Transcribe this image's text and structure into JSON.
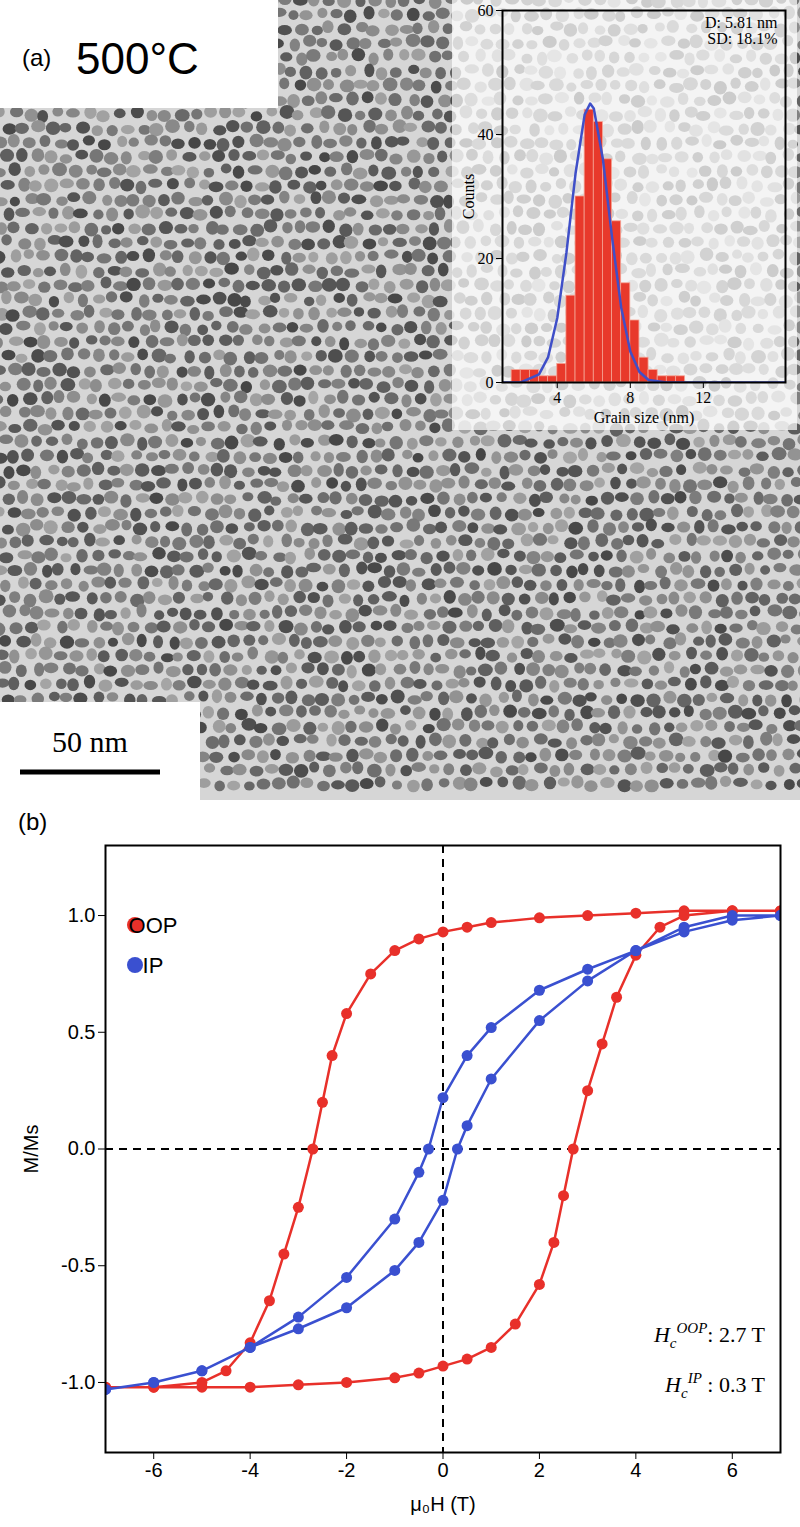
{
  "chart_data": [
    {
      "type": "histogram",
      "panel": "(a)",
      "image_label": "500°C",
      "scale_bar": "50 nm",
      "xlabel": "Grain size (nm)",
      "ylabel": "Counts",
      "bins": [
        1.5,
        2,
        2.5,
        3,
        3.5,
        4,
        4.5,
        5,
        5.5,
        6,
        6.5,
        7,
        7.5,
        8,
        8.5,
        9,
        9.5,
        10,
        10.5,
        11
      ],
      "counts": [
        2,
        2,
        2,
        1,
        1,
        3,
        14,
        30,
        44,
        42,
        36,
        26,
        16,
        10,
        4,
        2,
        1,
        1,
        1
      ],
      "color": "#e8392b",
      "fit": {
        "x": [
          1,
          2,
          3,
          3.5,
          4,
          4.5,
          5,
          5.5,
          5.8,
          6,
          6.5,
          7,
          7.5,
          8,
          8.5,
          9,
          10,
          12,
          16.5
        ],
        "values": [
          0,
          0,
          1.3,
          4.1,
          10.4,
          20.9,
          33.7,
          43.2,
          45,
          44.2,
          36,
          23.4,
          12.1,
          5,
          1.7,
          0.4,
          0,
          0,
          0
        ],
        "color": "#3f4fc8"
      },
      "xlim": [
        1,
        16.5
      ],
      "ylim": [
        0,
        60
      ],
      "xticks": [
        4,
        8,
        12
      ],
      "yticks": [
        0,
        20,
        40,
        60
      ],
      "annotations": [
        "D: 5.81 nm",
        "SD: 18.1%"
      ]
    },
    {
      "type": "line",
      "panel": "(b)",
      "xlabel": "μ₀H (T)",
      "ylabel": "M/Ms",
      "xlim": [
        -7,
        7
      ],
      "ylim": [
        -1.3,
        1.3
      ],
      "xticks": [
        -6,
        -4,
        -2,
        0,
        2,
        4,
        6
      ],
      "yticks": [
        {
          "value": -1,
          "label": "-1.0"
        },
        {
          "value": -0.5,
          "label": "-0.5"
        },
        {
          "value": 0,
          "label": "0.0"
        },
        {
          "value": 0.5,
          "label": "0.5"
        },
        {
          "value": 1,
          "label": "1.0"
        }
      ],
      "dashed_lines": {
        "x": [
          0
        ],
        "y": [
          0
        ]
      },
      "legend": "top-left",
      "series": [
        {
          "name": "OOP",
          "color": "#e8302a",
          "marker": "circle",
          "x": [
            7,
            6,
            5,
            4,
            3,
            2,
            1,
            0.5,
            0,
            -0.5,
            -1,
            -1.5,
            -2,
            -2.3,
            -2.5,
            -2.7,
            -3,
            -3.3,
            -3.6,
            -4,
            -4.5,
            -5,
            -6,
            -7,
            -7,
            -6,
            -5,
            -4,
            -3,
            -2,
            -1,
            -0.5,
            0,
            0.5,
            1,
            1.5,
            2,
            2.3,
            2.5,
            2.7,
            3,
            3.3,
            3.6,
            4,
            4.5,
            5,
            6,
            7
          ],
          "values": [
            1.02,
            1.02,
            1.02,
            1.01,
            1.0,
            0.99,
            0.97,
            0.95,
            0.93,
            0.9,
            0.85,
            0.75,
            0.58,
            0.4,
            0.2,
            0,
            -0.25,
            -0.45,
            -0.65,
            -0.83,
            -0.95,
            -1.0,
            -1.02,
            -1.02,
            -1.02,
            -1.02,
            -1.02,
            -1.02,
            -1.01,
            -1.0,
            -0.98,
            -0.96,
            -0.93,
            -0.9,
            -0.85,
            -0.75,
            -0.58,
            -0.4,
            -0.2,
            0,
            0.25,
            0.45,
            0.65,
            0.83,
            0.95,
            1.0,
            1.02,
            1.02
          ]
        },
        {
          "name": "IP",
          "color": "#3a50d0",
          "marker": "circle",
          "x": [
            7,
            6,
            5,
            4,
            3,
            2,
            1,
            0.5,
            0,
            -0.3,
            -0.5,
            -1,
            -2,
            -3,
            -4,
            -5,
            -6,
            -7,
            -7,
            -6,
            -5,
            -4,
            -3,
            -2,
            -1,
            -0.5,
            0,
            0.3,
            0.5,
            1,
            2,
            3,
            4,
            5,
            6,
            7
          ],
          "values": [
            1.0,
            0.98,
            0.93,
            0.85,
            0.77,
            0.68,
            0.52,
            0.4,
            0.22,
            0,
            -0.1,
            -0.3,
            -0.55,
            -0.72,
            -0.85,
            -0.95,
            -1.0,
            -1.03,
            -1.03,
            -1.0,
            -0.95,
            -0.85,
            -0.77,
            -0.68,
            -0.52,
            -0.4,
            -0.22,
            0,
            0.1,
            0.3,
            0.55,
            0.72,
            0.85,
            0.95,
            1.0,
            1.0
          ]
        }
      ],
      "annotations": [
        {
          "text": "H",
          "sub": "c",
          "sup": "OOP",
          "suffix": ": 2.7 T"
        },
        {
          "text": "H",
          "sub": "c",
          "sup": "IP",
          "suffix": " : 0.3 T"
        }
      ]
    }
  ]
}
